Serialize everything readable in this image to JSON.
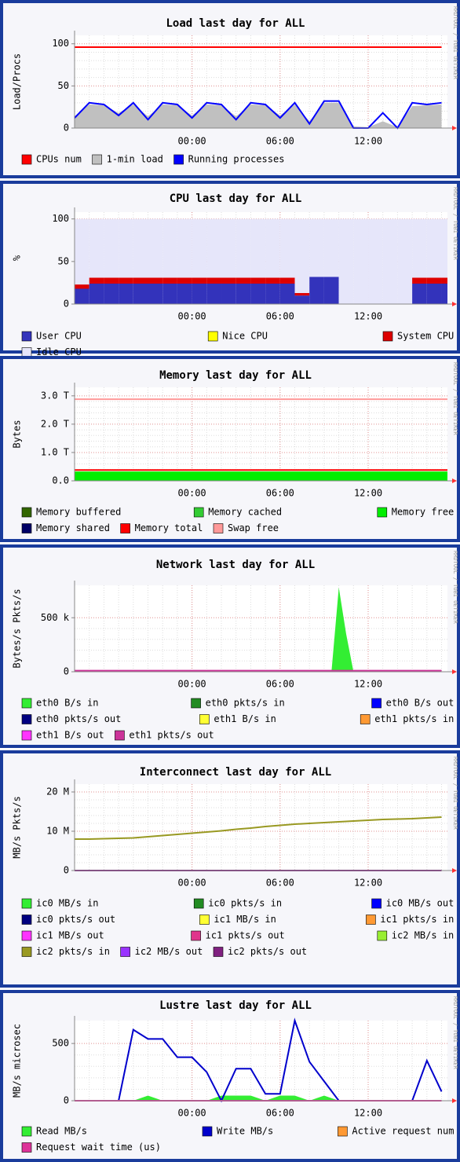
{
  "chart_data": [
    {
      "type": "line",
      "title": "Load last day for ALL",
      "ylabel": "Load/Procs",
      "watermark": "RRDTOOL / TOBI OETIKER",
      "x": [
        -8,
        -7,
        -6,
        -5,
        -4,
        -3,
        -2,
        -1,
        0,
        1,
        2,
        3,
        4,
        5,
        6,
        7,
        8,
        9,
        10,
        11,
        12,
        13,
        14,
        15,
        16,
        17
      ],
      "xlim": [
        -8,
        17.4
      ],
      "xticks": [
        {
          "value": 0,
          "label": "00:00"
        },
        {
          "value": 6,
          "label": "06:00"
        },
        {
          "value": 12,
          "label": "12:00"
        }
      ],
      "ylim": [
        0,
        110
      ],
      "yticks": [
        0,
        50,
        100
      ],
      "grid": true,
      "series": [
        {
          "name": "CPUs num",
          "color": "#ff0000",
          "style": "line",
          "values": [
            96,
            96,
            96,
            96,
            96,
            96,
            96,
            96,
            96,
            96,
            96,
            96,
            96,
            96,
            96,
            96,
            96,
            96,
            96,
            96,
            96,
            96,
            96,
            96,
            96,
            96
          ]
        },
        {
          "name": "1-min load",
          "color": "#c0c0c0",
          "style": "area",
          "values": [
            14,
            28,
            27,
            18,
            28,
            14,
            28,
            27,
            15,
            28,
            27,
            14,
            28,
            27,
            15,
            28,
            8,
            30,
            30,
            2,
            1,
            8,
            1,
            26,
            27,
            28
          ]
        },
        {
          "name": "Running processes",
          "color": "#0000ff",
          "style": "line",
          "values": [
            12,
            30,
            28,
            15,
            30,
            10,
            30,
            28,
            12,
            30,
            28,
            10,
            30,
            28,
            12,
            30,
            5,
            32,
            32,
            0,
            0,
            18,
            0,
            30,
            28,
            30
          ]
        }
      ]
    },
    {
      "type": "stacked_area",
      "title": "CPU last day for ALL",
      "ylabel": "%",
      "watermark": "RRDTOOL / TOBI OETIKER",
      "x": [
        -8,
        -7,
        -6,
        -5,
        -4,
        -3,
        -2,
        -1,
        0,
        1,
        2,
        3,
        4,
        5,
        6,
        7,
        8,
        9,
        10,
        11,
        12,
        13,
        14,
        15,
        16,
        17
      ],
      "xlim": [
        -8,
        17.4
      ],
      "xticks": [
        {
          "value": 0,
          "label": "00:00"
        },
        {
          "value": 6,
          "label": "06:00"
        },
        {
          "value": 12,
          "label": "12:00"
        }
      ],
      "ylim": [
        0,
        108
      ],
      "yticks": [
        0,
        50,
        100
      ],
      "grid": true,
      "series": [
        {
          "name": "User CPU",
          "color": "#3333bb",
          "values": [
            18,
            24,
            24,
            24,
            24,
            24,
            24,
            24,
            24,
            24,
            24,
            24,
            24,
            24,
            24,
            10,
            32,
            32,
            0,
            0,
            0,
            0,
            0,
            24,
            24,
            24
          ]
        },
        {
          "name": "Nice CPU",
          "color": "#ffff00"
        },
        {
          "name": "System CPU",
          "color": "#dd0000",
          "values": [
            5,
            7,
            7,
            7,
            7,
            7,
            7,
            7,
            7,
            7,
            7,
            7,
            7,
            7,
            7,
            3,
            0,
            0,
            0,
            0,
            0,
            0,
            0,
            7,
            7,
            7
          ]
        },
        {
          "name": "Idle CPU",
          "color": "#e6e6fa",
          "values": [
            77,
            69,
            69,
            69,
            69,
            69,
            69,
            69,
            69,
            69,
            69,
            69,
            69,
            69,
            69,
            87,
            68,
            68,
            100,
            100,
            100,
            100,
            100,
            69,
            69,
            69
          ]
        }
      ]
    },
    {
      "type": "line",
      "title": "Memory last day for ALL",
      "ylabel": "Bytes",
      "watermark": "RRDTOOL / TOBI OETIKER",
      "x": [
        -8,
        17.4
      ],
      "xlim": [
        -8,
        17.4
      ],
      "xticks": [
        {
          "value": 0,
          "label": "00:00"
        },
        {
          "value": 6,
          "label": "06:00"
        },
        {
          "value": 12,
          "label": "12:00"
        }
      ],
      "ylim": [
        0,
        3300000000000
      ],
      "yticks": [
        {
          "value": 0,
          "label": "0.0"
        },
        {
          "value": 1000000000000,
          "label": "1.0 T"
        },
        {
          "value": 2000000000000,
          "label": "2.0 T"
        },
        {
          "value": 3000000000000,
          "label": "3.0 T"
        }
      ],
      "grid": true,
      "series": [
        {
          "name": "Memory buffered",
          "color": "#336600"
        },
        {
          "name": "Memory cached",
          "color": "#33cc33"
        },
        {
          "name": "Memory free",
          "color": "#00ee00",
          "style": "area",
          "values": [
            330000000000,
            330000000000
          ]
        },
        {
          "name": "Memory shared",
          "color": "#000066"
        },
        {
          "name": "Memory total",
          "color": "#ff0000",
          "style": "line",
          "values": [
            380000000000,
            380000000000
          ]
        },
        {
          "name": "Swap free",
          "color": "#ff9999",
          "style": "line",
          "values": [
            2880000000000,
            2880000000000
          ]
        }
      ]
    },
    {
      "type": "line",
      "title": "Network last day for ALL",
      "ylabel": "Bytes/s Pkts/s",
      "watermark": "RRDTOOL / TOBI OETIKER",
      "x": [
        -8,
        -7,
        -6,
        -5,
        -4,
        -3,
        -2,
        -1,
        0,
        1,
        2,
        3,
        4,
        5,
        6,
        7,
        8,
        9,
        9.5,
        10,
        10.5,
        11,
        12,
        13,
        14,
        15,
        16,
        17
      ],
      "xlim": [
        -8,
        17.4
      ],
      "xticks": [
        {
          "value": 0,
          "label": "00:00"
        },
        {
          "value": 6,
          "label": "06:00"
        },
        {
          "value": 12,
          "label": "12:00"
        }
      ],
      "ylim": [
        0,
        800000
      ],
      "yticks": [
        0,
        {
          "value": 500000,
          "label": "500 k"
        }
      ],
      "grid": true,
      "series": [
        {
          "name": "eth0 B/s in",
          "color": "#33ee33",
          "style": "area",
          "values": [
            0,
            0,
            0,
            0,
            0,
            0,
            0,
            0,
            0,
            0,
            0,
            0,
            0,
            0,
            0,
            0,
            0,
            0,
            0,
            780000,
            350000,
            0,
            0,
            0,
            0,
            0,
            0,
            0
          ]
        },
        {
          "name": "eth0 pkts/s in",
          "color": "#228b22"
        },
        {
          "name": "eth0 B/s out",
          "color": "#0000ff"
        },
        {
          "name": "eth0 pkts/s out",
          "color": "#000080"
        },
        {
          "name": "eth1 B/s in",
          "color": "#ffff33"
        },
        {
          "name": "eth1 pkts/s in",
          "color": "#ff9933"
        },
        {
          "name": "eth1 B/s out",
          "color": "#ff33ff"
        },
        {
          "name": "eth1 pkts/s out",
          "color": "#cc3399",
          "style": "line",
          "values": [
            10000,
            10000,
            10000,
            10000,
            10000,
            10000,
            10000,
            10000,
            10000,
            10000,
            10000,
            10000,
            10000,
            10000,
            10000,
            10000,
            10000,
            10000,
            10000,
            10000,
            10000,
            10000,
            10000,
            10000,
            10000,
            10000,
            10000,
            10000
          ]
        }
      ]
    },
    {
      "type": "line",
      "title": "Interconnect last day for ALL",
      "ylabel": "MB/s Pkts/s",
      "watermark": "RRDTOOL / TOBI OETIKER",
      "x": [
        -8,
        -7,
        -6,
        -5,
        -4,
        -3,
        -2,
        -1,
        0,
        1,
        2,
        3,
        4,
        5,
        6,
        7,
        8,
        9,
        10,
        11,
        12,
        13,
        14,
        15,
        16,
        17
      ],
      "xlim": [
        -8,
        17.4
      ],
      "xticks": [
        {
          "value": 0,
          "label": "00:00"
        },
        {
          "value": 6,
          "label": "06:00"
        },
        {
          "value": 12,
          "label": "12:00"
        }
      ],
      "ylim": [
        0,
        22000000
      ],
      "yticks": [
        0,
        {
          "value": 10000000,
          "label": "10 M"
        },
        {
          "value": 20000000,
          "label": "20 M"
        }
      ],
      "grid": true,
      "series": [
        {
          "name": "ic0 MB/s in",
          "color": "#33ee33"
        },
        {
          "name": "ic0 pkts/s in",
          "color": "#228b22"
        },
        {
          "name": "ic0 MB/s out",
          "color": "#0000ff"
        },
        {
          "name": "ic0 pkts/s out",
          "color": "#000080"
        },
        {
          "name": "ic1 MB/s in",
          "color": "#ffff33"
        },
        {
          "name": "ic1 pkts/s in",
          "color": "#ff9933"
        },
        {
          "name": "ic1 MB/s out",
          "color": "#ff33ff"
        },
        {
          "name": "ic1 pkts/s out",
          "color": "#e0348c"
        },
        {
          "name": "ic2 MB/s in",
          "color": "#99ee33"
        },
        {
          "name": "ic2 pkts/s in",
          "color": "#999922",
          "style": "line",
          "values": [
            8000000,
            8000000,
            8100000,
            8200000,
            8300000,
            8600000,
            8900000,
            9200000,
            9500000,
            9800000,
            10100000,
            10500000,
            10800000,
            11200000,
            11500000,
            11800000,
            12000000,
            12200000,
            12400000,
            12600000,
            12800000,
            13000000,
            13100000,
            13200000,
            13400000,
            13600000
          ]
        },
        {
          "name": "ic2 MB/s out",
          "color": "#9933ff"
        },
        {
          "name": "ic2 pkts/s out",
          "color": "#802080",
          "style": "line",
          "values": [
            0,
            0,
            0,
            0,
            0,
            0,
            0,
            0,
            0,
            0,
            0,
            0,
            0,
            0,
            0,
            0,
            0,
            0,
            0,
            0,
            0,
            0,
            0,
            0,
            0,
            0
          ]
        }
      ]
    },
    {
      "type": "line",
      "title": "Lustre last day for ALL",
      "ylabel": "MB/s microsec",
      "watermark": "RRDTOOL / TOBI OETIKER",
      "x": [
        -8,
        -7,
        -6,
        -5,
        -4,
        -3,
        -2,
        -1,
        0,
        1,
        2,
        3,
        4,
        5,
        6,
        7,
        8,
        9,
        10,
        11,
        12,
        13,
        14,
        15,
        16,
        17
      ],
      "xlim": [
        -8,
        17.4
      ],
      "xticks": [
        {
          "value": 0,
          "label": "00:00"
        },
        {
          "value": 6,
          "label": "06:00"
        },
        {
          "value": 12,
          "label": "12:00"
        }
      ],
      "ylim": [
        0,
        700
      ],
      "yticks": [
        0,
        500
      ],
      "grid": true,
      "series": [
        {
          "name": "Read MB/s",
          "color": "#33ee33",
          "style": "area",
          "values": [
            0,
            0,
            0,
            0,
            0,
            45,
            0,
            0,
            0,
            0,
            45,
            45,
            45,
            0,
            45,
            45,
            0,
            45,
            0,
            0,
            0,
            0,
            0,
            0,
            0,
            0
          ]
        },
        {
          "name": "Write MB/s",
          "color": "#0000cc",
          "style": "line",
          "values": [
            0,
            0,
            0,
            0,
            620,
            540,
            540,
            380,
            380,
            250,
            0,
            280,
            280,
            60,
            60,
            700,
            340,
            170,
            0,
            0,
            0,
            0,
            0,
            0,
            350,
            80
          ]
        },
        {
          "name": "Active request num",
          "color": "#ff9933"
        },
        {
          "name": "Request wait time (us)",
          "color": "#dd3399",
          "style": "line",
          "values": [
            0,
            0,
            0,
            0,
            0,
            0,
            0,
            0,
            0,
            0,
            0,
            0,
            0,
            0,
            0,
            0,
            0,
            0,
            0,
            0,
            0,
            0,
            0,
            0,
            0,
            0
          ]
        }
      ]
    }
  ]
}
